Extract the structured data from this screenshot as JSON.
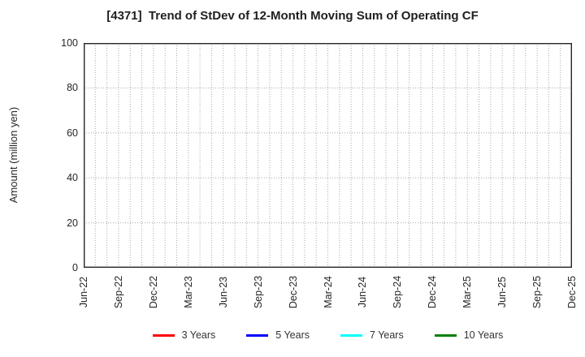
{
  "chart": {
    "title": "[4371]  Trend of StDev of 12-Month Moving Sum of Operating CF",
    "ylabel": "Amount (million yen)"
  },
  "chart_data": {
    "type": "line",
    "title": "[4371]  Trend of StDev of 12-Month Moving Sum of Operating CF",
    "xlabel": "",
    "ylabel": "Amount (million yen)",
    "ylim": [
      0,
      100
    ],
    "yticks": [
      0,
      20,
      40,
      60,
      80,
      100
    ],
    "x_tick_labels": [
      "Jun-22",
      "Sep-22",
      "Dec-22",
      "Mar-23",
      "Jun-23",
      "Sep-23",
      "Dec-23",
      "Mar-24",
      "Jun-24",
      "Sep-24",
      "Dec-24",
      "Mar-25",
      "Jun-25",
      "Sep-25",
      "Dec-25"
    ],
    "x_minor_per_major": 3,
    "grid": true,
    "grid_color": "#a9a9a9",
    "border_color": "#262626",
    "legend_position": "bottom",
    "series": [
      {
        "name": "3 Years",
        "color": "#ff0000",
        "values": []
      },
      {
        "name": "5 Years",
        "color": "#0000ff",
        "values": []
      },
      {
        "name": "7 Years",
        "color": "#00ffff",
        "values": []
      },
      {
        "name": "10 Years",
        "color": "#008000",
        "values": []
      }
    ]
  }
}
